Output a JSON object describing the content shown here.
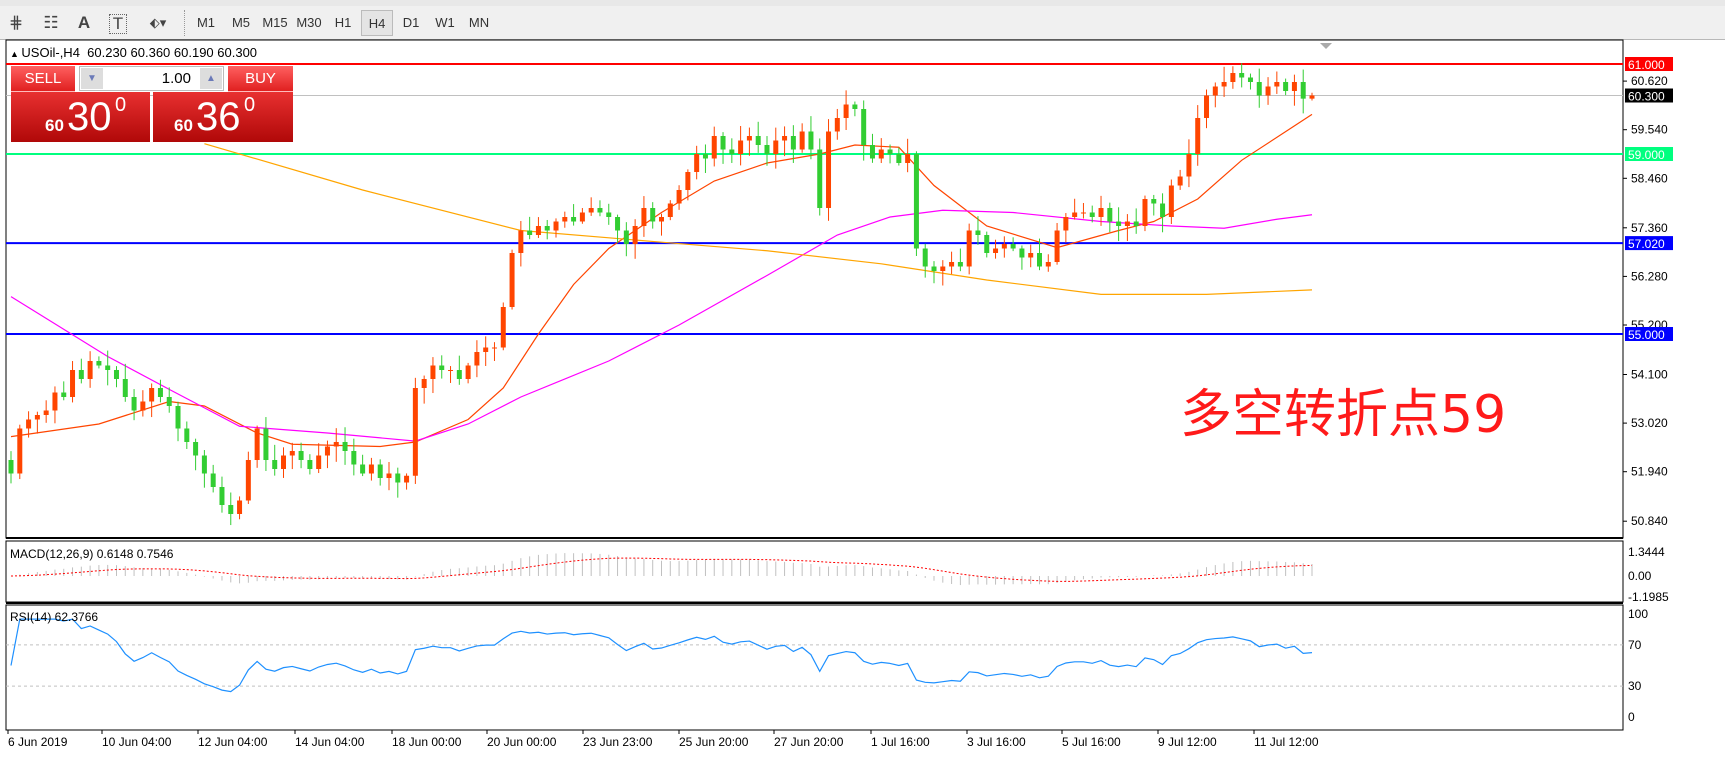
{
  "toolbar": {
    "tools": [
      {
        "icon": "fibonacci-expansion-icon",
        "glyph": "⋕"
      },
      {
        "icon": "fibonacci-fan-icon",
        "glyph": "☷"
      },
      {
        "icon": "text-icon",
        "glyph": "A"
      },
      {
        "icon": "text-label-icon",
        "glyph": "T"
      },
      {
        "icon": "arrows-icon",
        "glyph": "⬖▾"
      }
    ],
    "timeframes": [
      "M1",
      "M5",
      "M15",
      "M30",
      "H1",
      "H4",
      "D1",
      "W1",
      "MN"
    ],
    "active_timeframe": "H4"
  },
  "chart": {
    "symbol_header": "USOil-,H4  60.230 60.360 60.190 60.300",
    "annotation": "多空转折点59",
    "colors": {
      "bull": "#ff4500",
      "bear": "#32cd32",
      "ma_fast": "#ff4500",
      "ma_mid": "#ff00ff",
      "ma_slow": "#ffa500",
      "rsi": "#1e90ff",
      "macd_signal": "#ff0000",
      "macd_hist": "#c0c0c0"
    }
  },
  "trade_panel": {
    "sell_label": "SELL",
    "buy_label": "BUY",
    "lot": "1.00",
    "sell_price": {
      "prefix": "60",
      "big": "30",
      "sup": "0"
    },
    "buy_price": {
      "prefix": "60",
      "big": "36",
      "sup": "0"
    }
  },
  "chart_data": {
    "type": "candlestick",
    "symbol": "USOil-",
    "timeframe": "H4",
    "ohlc_last": {
      "open": 60.23,
      "high": 60.36,
      "low": 60.19,
      "close": 60.3
    },
    "ylim": [
      50.47,
      61.5
    ],
    "price_ticks": [
      "60.620",
      "59.540",
      "58.460",
      "57.360",
      "56.280",
      "55.200",
      "54.100",
      "53.020",
      "51.940",
      "50.840"
    ],
    "horizontal_lines": [
      {
        "price": 61.0,
        "label": "61.000",
        "color": "#ff0000"
      },
      {
        "price": 60.3,
        "label": "60.300",
        "color": "#c0c0c0",
        "label_bg": "#000000"
      },
      {
        "price": 59.0,
        "label": "59.000",
        "color": "#00ff7f"
      },
      {
        "price": 57.02,
        "label": "57.020",
        "color": "#0000ff"
      },
      {
        "price": 55.0,
        "label": "55.000",
        "color": "#0000ff"
      }
    ],
    "time_labels": [
      "6 Jun 2019",
      "10 Jun 04:00",
      "12 Jun 04:00",
      "14 Jun 04:00",
      "18 Jun 00:00",
      "20 Jun 00:00",
      "23 Jun 23:00",
      "25 Jun 20:00",
      "27 Jun 20:00",
      "1 Jul 16:00",
      "3 Jul 16:00",
      "5 Jul 16:00",
      "9 Jul 12:00",
      "11 Jul 12:00"
    ],
    "closes": [
      51.9,
      52.9,
      53.1,
      53.2,
      53.3,
      53.7,
      53.6,
      54.2,
      54.0,
      54.4,
      54.3,
      54.2,
      54.0,
      53.6,
      53.3,
      53.5,
      53.8,
      53.6,
      53.4,
      52.9,
      52.6,
      52.3,
      51.9,
      51.6,
      51.2,
      51.0,
      51.3,
      52.2,
      52.9,
      52.2,
      52.0,
      52.3,
      52.4,
      52.2,
      52.0,
      52.3,
      52.5,
      52.6,
      52.4,
      52.1,
      51.9,
      52.1,
      51.8,
      51.9,
      51.7,
      51.85,
      53.8,
      54.0,
      54.3,
      54.2,
      54.2,
      54.0,
      54.3,
      54.6,
      54.7,
      54.7,
      55.6,
      56.8,
      57.3,
      57.2,
      57.4,
      57.3,
      57.5,
      57.6,
      57.5,
      57.7,
      57.8,
      57.7,
      57.6,
      57.3,
      57.0,
      57.4,
      57.8,
      57.5,
      57.6,
      57.9,
      58.2,
      58.6,
      59.0,
      58.9,
      59.4,
      59.1,
      59.0,
      59.3,
      59.4,
      59.2,
      59.0,
      59.3,
      59.4,
      59.1,
      59.5,
      59.1,
      57.8,
      59.5,
      59.8,
      60.1,
      60.0,
      59.2,
      58.9,
      59.1,
      59.0,
      58.8,
      59.0,
      56.9,
      56.5,
      56.4,
      56.5,
      56.6,
      56.5,
      57.3,
      57.2,
      56.8,
      56.9,
      57.0,
      56.9,
      56.7,
      56.8,
      56.5,
      56.6,
      57.3,
      57.6,
      57.7,
      57.7,
      57.6,
      57.8,
      57.5,
      57.4,
      57.5,
      57.4,
      58.0,
      57.9,
      57.6,
      58.3,
      58.5,
      59.0,
      59.8,
      60.3,
      60.5,
      60.6,
      60.8,
      60.7,
      60.6,
      60.3,
      60.5,
      60.6,
      60.4,
      60.6,
      60.23,
      60.3
    ],
    "moving_averages": [
      {
        "role": "fast",
        "points": [
          [
            0,
            52.72
          ],
          [
            10,
            53.0
          ],
          [
            18,
            53.5
          ],
          [
            22,
            53.4
          ],
          [
            28,
            52.8
          ],
          [
            32,
            52.55
          ],
          [
            42,
            52.5
          ],
          [
            46,
            52.6
          ],
          [
            52,
            53.1
          ],
          [
            56,
            53.8
          ],
          [
            60,
            55.0
          ],
          [
            64,
            56.1
          ],
          [
            68,
            56.9
          ],
          [
            74,
            57.7
          ],
          [
            80,
            58.4
          ],
          [
            86,
            58.8
          ],
          [
            92,
            59.0
          ],
          [
            96,
            59.2
          ],
          [
            101,
            59.15
          ],
          [
            105,
            58.3
          ],
          [
            111,
            57.4
          ],
          [
            119,
            56.92
          ],
          [
            126,
            57.3
          ],
          [
            130,
            57.5
          ],
          [
            135,
            58.0
          ],
          [
            140,
            58.86
          ],
          [
            148,
            59.88
          ]
        ]
      },
      {
        "role": "mid",
        "points": [
          [
            0,
            55.83
          ],
          [
            11,
            54.5
          ],
          [
            18,
            53.77
          ],
          [
            26,
            52.95
          ],
          [
            36,
            52.8
          ],
          [
            46,
            52.62
          ],
          [
            52,
            53.0
          ],
          [
            58,
            53.6
          ],
          [
            68,
            54.4
          ],
          [
            76,
            55.2
          ],
          [
            86,
            56.3
          ],
          [
            94,
            57.2
          ],
          [
            100,
            57.6
          ],
          [
            106,
            57.75
          ],
          [
            114,
            57.7
          ],
          [
            124,
            57.5
          ],
          [
            132,
            57.4
          ],
          [
            138,
            57.35
          ],
          [
            144,
            57.55
          ],
          [
            148,
            57.65
          ]
        ]
      },
      {
        "role": "slow",
        "points": [
          [
            22,
            59.23
          ],
          [
            40,
            58.2
          ],
          [
            58,
            57.3
          ],
          [
            74,
            57.04
          ],
          [
            86,
            56.85
          ],
          [
            99,
            56.56
          ],
          [
            111,
            56.2
          ],
          [
            124,
            55.88
          ],
          [
            136,
            55.88
          ],
          [
            148,
            55.98
          ]
        ]
      }
    ],
    "macd": {
      "label": "MACD(12,26,9) 0.6148 0.7546",
      "ticks": [
        "1.3444",
        "0.00",
        "-1.1985"
      ],
      "ylim": [
        -1.1985,
        1.3444
      ]
    },
    "rsi": {
      "label": "RSI(14) 62.3766",
      "ticks": [
        "100",
        "70",
        "30",
        "0"
      ],
      "levels": [
        70,
        30
      ],
      "ylim": [
        0,
        100
      ]
    }
  }
}
